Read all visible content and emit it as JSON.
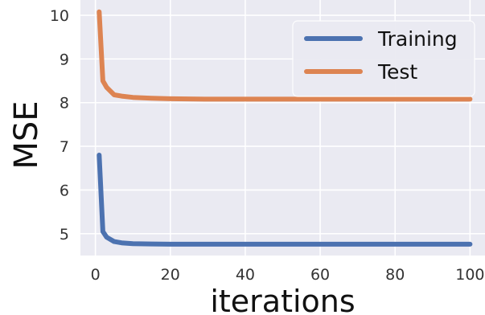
{
  "chart_data": {
    "type": "line",
    "xlabel": "iterations",
    "ylabel": "MSE",
    "xlim": [
      -4,
      104
    ],
    "ylim": [
      4.5,
      10.35
    ],
    "x_ticks": [
      0,
      20,
      40,
      60,
      80,
      100
    ],
    "y_ticks": [
      5,
      6,
      7,
      8,
      9,
      10
    ],
    "grid": true,
    "legend_position": "top-right",
    "series": [
      {
        "name": "Training",
        "color": "#4C72B0",
        "x": [
          1,
          2,
          3,
          5,
          7,
          10,
          15,
          20,
          30,
          40,
          50,
          60,
          70,
          80,
          90,
          100
        ],
        "y": [
          6.8,
          5.05,
          4.92,
          4.82,
          4.79,
          4.77,
          4.765,
          4.76,
          4.76,
          4.76,
          4.76,
          4.76,
          4.76,
          4.76,
          4.76,
          4.76
        ]
      },
      {
        "name": "Test",
        "color": "#DD8452",
        "x": [
          1,
          2,
          3,
          5,
          7,
          10,
          15,
          20,
          30,
          40,
          50,
          60,
          70,
          80,
          90,
          100
        ],
        "y": [
          10.08,
          8.5,
          8.35,
          8.18,
          8.15,
          8.12,
          8.1,
          8.09,
          8.08,
          8.08,
          8.08,
          8.08,
          8.08,
          8.08,
          8.08,
          8.08
        ]
      }
    ]
  }
}
